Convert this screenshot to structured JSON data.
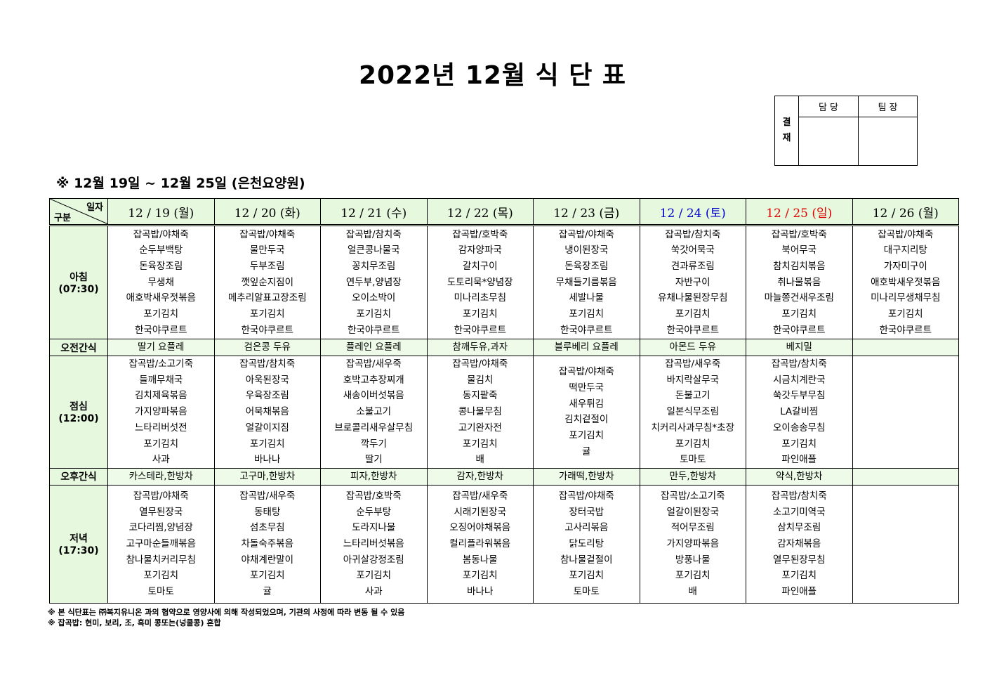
{
  "title": "2022년 12월 식 단 표",
  "approval": {
    "label": "결\n재",
    "col1": "담 당",
    "col2": "팀 장"
  },
  "subtitle": "※ 12월 19일 ~ 12월 25일 (은천요양원)",
  "corner": {
    "top": "일자",
    "bottom": "구분"
  },
  "colors": {
    "header_bg": "#e6f8de",
    "saturday": "#0000cc",
    "sunday": "#e00000"
  },
  "days": [
    {
      "label": "12 / 19 (월)",
      "color": "#000000"
    },
    {
      "label": "12 / 20 (화)",
      "color": "#000000"
    },
    {
      "label": "12 / 21 (수)",
      "color": "#000000"
    },
    {
      "label": "12 / 22 (목)",
      "color": "#000000"
    },
    {
      "label": "12 / 23 (금)",
      "color": "#000000"
    },
    {
      "label": "12 / 24 (토)",
      "color": "#0000cc"
    },
    {
      "label": "12 / 25 (일)",
      "color": "#e00000"
    },
    {
      "label": "12 / 26 (월)",
      "color": "#000000"
    }
  ],
  "meals": [
    {
      "name": "아침",
      "time": "(07:30)",
      "type": "meal",
      "cells": [
        [
          "잡곡밥/야채죽",
          "순두부백탕",
          "돈육장조림",
          "무생채",
          "애호박새우젓볶음",
          "포기김치",
          "한국야쿠르트"
        ],
        [
          "잡곡밥/야채죽",
          "물만두국",
          "두부조림",
          "깻잎순지짐이",
          "메추리알표고장조림",
          "포기김치",
          "한국야쿠르트"
        ],
        [
          "잡곡밥/참치죽",
          "얼큰콩나물국",
          "꽁치무조림",
          "연두부,양념장",
          "오이소박이",
          "포기김치",
          "한국야쿠르트"
        ],
        [
          "잡곡밥/호박죽",
          "감자양파국",
          "갈치구이",
          "도토리묵*양념장",
          "미나리초무침",
          "포기김치",
          "한국야쿠르트"
        ],
        [
          "잡곡밥/야채죽",
          "냉이된장국",
          "돈육장조림",
          "무채들기름볶음",
          "세발나물",
          "포기김치",
          "한국야쿠르트"
        ],
        [
          "잡곡밥/참치죽",
          "쑥갓어묵국",
          "견과류조림",
          "자반구이",
          "유채나물된장무침",
          "포기김치",
          "한국야쿠르트"
        ],
        [
          "잡곡밥/호박죽",
          "북어무국",
          "참치김치볶음",
          "취나물볶음",
          "마늘쫑건새우조림",
          "포기김치",
          "한국야쿠르트"
        ],
        [
          "잡곡밥/야채죽",
          "대구지리탕",
          "가자미구이",
          "애호박새우젓볶음",
          "미나리무생채무침",
          "포기김치",
          "한국야쿠르트"
        ]
      ]
    },
    {
      "name": "오전간식",
      "time": "",
      "type": "snack",
      "cells": [
        [
          "딸기 요플레"
        ],
        [
          "검은콩 두유"
        ],
        [
          "플레인 요플레"
        ],
        [
          "참깨두유,과자"
        ],
        [
          "블루베리 요플레"
        ],
        [
          "아몬드 두유"
        ],
        [
          "베지밀"
        ],
        []
      ]
    },
    {
      "name": "점심",
      "time": "(12:00)",
      "type": "meal",
      "cells": [
        [
          "잡곡밥/소고기죽",
          "들깨무채국",
          "김치제육볶음",
          "가지양파볶음",
          "느타리버섯전",
          "포기김치",
          "사과"
        ],
        [
          "잡곡밥/참치죽",
          "아욱된장국",
          "우육장조림",
          "어묵채볶음",
          "얼갈이지짐",
          "포기김치",
          "바나나"
        ],
        [
          "잡곡밥/새우죽",
          "호박고추장찌개",
          "새송이버섯볶음",
          "소불고기",
          "브로콜리새우살무침",
          "깍두기",
          "딸기"
        ],
        [
          "잡곡밥/야채죽",
          "물김치",
          "동지팥죽",
          "콩나물무침",
          "고기완자전",
          "포기김치",
          "배"
        ],
        [
          "잡곡밥/야채죽",
          "떡만두국",
          "새우튀김",
          "김치겉절이",
          "포기김치",
          "귤"
        ],
        [
          "잡곡밥/새우죽",
          "바지락살무국",
          "돈불고기",
          "일본식무조림",
          "치커리사과무침*초장",
          "포기김치",
          "토마토"
        ],
        [
          "잡곡밥/참치죽",
          "시금치계란국",
          "쑥갓두부무침",
          "LA갈비찜",
          "오이송송무침",
          "포기김치",
          "파인애플"
        ],
        []
      ]
    },
    {
      "name": "오후간식",
      "time": "",
      "type": "snack",
      "cells": [
        [
          "카스테라,한방차"
        ],
        [
          "고구마,한방차"
        ],
        [
          "피자,한방차"
        ],
        [
          "감자,한방차"
        ],
        [
          "가래떡,한방차"
        ],
        [
          "만두,한방차"
        ],
        [
          "약식,한방차"
        ],
        []
      ]
    },
    {
      "name": "저녁",
      "time": "(17:30)",
      "type": "meal",
      "cells": [
        [
          "잡곡밥/야채죽",
          "열무된장국",
          "코다리찜,양념장",
          "고구마순들깨볶음",
          "참나물치커리무침",
          "포기김치",
          "토마토"
        ],
        [
          "잡곡밥/새우죽",
          "동태탕",
          "섬초무침",
          "차돌숙주볶음",
          "야채계란말이",
          "포기김치",
          "귤"
        ],
        [
          "잡곡밥/호박죽",
          "순두부탕",
          "도라지나물",
          "느타리버섯볶음",
          "아귀살강정조림",
          "포기김치",
          "사과"
        ],
        [
          "잡곡밥/새우죽",
          "시래기된장국",
          "오징어야채볶음",
          "컬리플라워볶음",
          "봄동나물",
          "포기김치",
          "바나나"
        ],
        [
          "잡곡밥/야채죽",
          "장터국밥",
          "고사리볶음",
          "닭도리탕",
          "참나물겉절이",
          "포기김치",
          "토마토"
        ],
        [
          "잡곡밥/소고기죽",
          "얼갈이된장국",
          "적어무조림",
          "가지양파볶음",
          "방풍나물",
          "포기김치",
          "배"
        ],
        [
          "잡곡밥/참치죽",
          "소고기미역국",
          "삼치무조림",
          "감자채볶음",
          "열무된장무침",
          "포기김치",
          "파인애플"
        ],
        []
      ]
    }
  ],
  "notes": [
    "※ 본 식단표는 ㈜복지유니온 과의 협약으로 영양사에 의해 작성되었으며, 기관의 사정에 따라 변동 될 수 있음",
    "※ 잡곡밥: 현미, 보리, 조, 흑미 콩또는(넝쿨콩) 혼합"
  ]
}
